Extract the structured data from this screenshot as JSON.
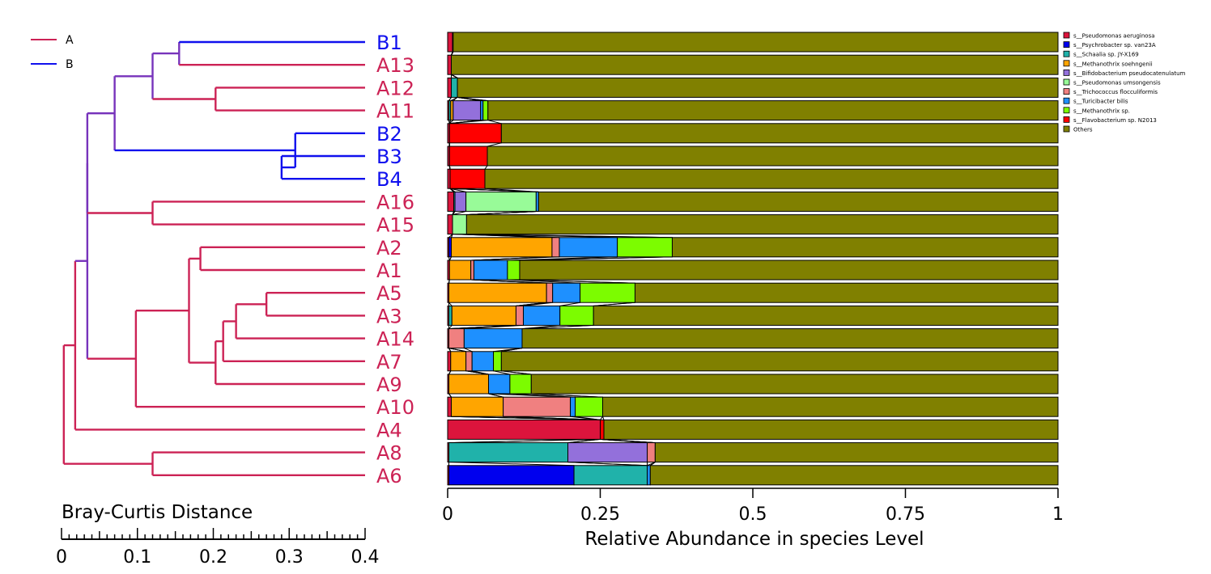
{
  "colors": {
    "group_A": "#cc2255",
    "group_B": "#1010ee",
    "mixed": "#7733bb"
  },
  "group_legend": [
    {
      "label": "A",
      "color": "#cc2255"
    },
    {
      "label": "B",
      "color": "#1010ee"
    }
  ],
  "chart_data": {
    "type": "bar",
    "orientation": "horizontal-stacked",
    "xlabel": "Relative Abundance in species Level",
    "xlim": [
      0,
      1
    ],
    "xticks": [
      "0",
      "0.25",
      "0.5",
      "0.75",
      "1"
    ],
    "samples": [
      "B1",
      "A13",
      "A12",
      "A11",
      "B2",
      "B3",
      "B4",
      "A16",
      "A15",
      "A2",
      "A1",
      "A5",
      "A3",
      "A14",
      "A7",
      "A9",
      "A10",
      "A4",
      "A8",
      "A6"
    ],
    "sample_groups": [
      "B",
      "A",
      "A",
      "A",
      "B",
      "B",
      "B",
      "A",
      "A",
      "A",
      "A",
      "A",
      "A",
      "A",
      "A",
      "A",
      "A",
      "A",
      "A",
      "A"
    ],
    "series": [
      {
        "name": "s__Pseudomonas aeruginosa",
        "color": "#dc143c",
        "values": [
          0.008,
          0.006,
          0.006,
          0.002,
          0.003,
          0.003,
          0.004,
          0.01,
          0.008,
          0.002,
          0.003,
          0.002,
          0.002,
          0.002,
          0.005,
          0.002,
          0.006,
          0.25,
          0.002,
          0.002
        ]
      },
      {
        "name": "s__Psychrobacter sp. van23A",
        "color": "#0000ee",
        "values": [
          0.001,
          0,
          0,
          0,
          0,
          0,
          0,
          0,
          0,
          0.004,
          0,
          0,
          0,
          0,
          0,
          0,
          0,
          0,
          0,
          0.205
        ]
      },
      {
        "name": "s__Schaalia sp. JY-X169",
        "color": "#20b2aa",
        "values": [
          0,
          0,
          0.01,
          0.003,
          0,
          0,
          0,
          0.002,
          0,
          0,
          0,
          0,
          0.005,
          0,
          0,
          0,
          0,
          0,
          0.195,
          0.12
        ]
      },
      {
        "name": "s__Methanothrix soehngenii",
        "color": "#ffa500",
        "values": [
          0,
          0,
          0,
          0.004,
          0,
          0,
          0,
          0,
          0,
          0.165,
          0.035,
          0.16,
          0.105,
          0,
          0.025,
          0.065,
          0.085,
          0,
          0,
          0
        ]
      },
      {
        "name": "s__Bifidobacterium pseudocatenulatum",
        "color": "#9370db",
        "values": [
          0,
          0,
          0,
          0.045,
          0,
          0,
          0,
          0.018,
          0,
          0,
          0,
          0,
          0,
          0,
          0,
          0,
          0,
          0,
          0.13,
          0
        ]
      },
      {
        "name": "s__Pseudomonas umsongensis",
        "color": "#98fb98",
        "values": [
          0,
          0,
          0,
          0,
          0,
          0,
          0,
          0.115,
          0.023,
          0,
          0,
          0,
          0,
          0,
          0,
          0,
          0,
          0,
          0,
          0
        ]
      },
      {
        "name": "s__Trichococcus flocculiformis",
        "color": "#f08080",
        "values": [
          0,
          0,
          0,
          0,
          0,
          0,
          0,
          0,
          0,
          0.012,
          0.005,
          0.01,
          0.012,
          0.025,
          0.01,
          0,
          0.11,
          0,
          0.013,
          0
        ]
      },
      {
        "name": "s__Turicibacter bilis",
        "color": "#1e90ff",
        "values": [
          0,
          0,
          0,
          0.004,
          0,
          0,
          0,
          0.004,
          0,
          0.095,
          0.055,
          0.045,
          0.06,
          0.095,
          0.035,
          0.035,
          0.008,
          0,
          0,
          0.005
        ]
      },
      {
        "name": "s__Methanothrix sp.",
        "color": "#7cfc00",
        "values": [
          0,
          0,
          0,
          0.008,
          0,
          0,
          0,
          0,
          0,
          0.09,
          0.02,
          0.09,
          0.055,
          0,
          0.013,
          0.035,
          0.045,
          0,
          0,
          0
        ]
      },
      {
        "name": "s__Flavobacterium sp. N2013",
        "color": "#ff0000",
        "values": [
          0,
          0,
          0,
          0,
          0.085,
          0.062,
          0.057,
          0,
          0,
          0,
          0,
          0,
          0,
          0,
          0,
          0,
          0,
          0.006,
          0,
          0
        ]
      },
      {
        "name": "Others",
        "color": "#808000",
        "values": [
          0.991,
          0.994,
          0.984,
          0.934,
          0.912,
          0.935,
          0.939,
          0.851,
          0.969,
          0.632,
          0.882,
          0.693,
          0.761,
          0.878,
          0.912,
          0.863,
          0.746,
          0.744,
          0.66,
          0.668
        ]
      }
    ],
    "dendrogram": {
      "distance_label": "Bray-Curtis Distance",
      "ticks": [
        "0",
        "0.1",
        "0.2",
        "0.3",
        "0.4"
      ],
      "range": [
        0,
        0.4
      ]
    }
  }
}
